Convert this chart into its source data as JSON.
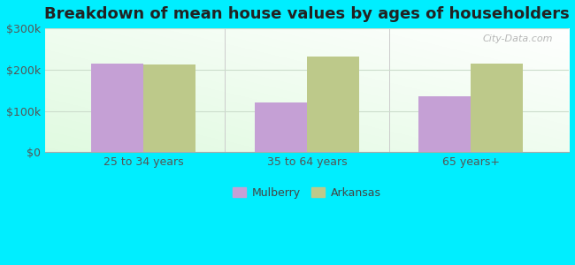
{
  "title": "Breakdown of mean house values by ages of householders",
  "categories": [
    "25 to 34 years",
    "35 to 64 years",
    "65 years+"
  ],
  "mulberry_values": [
    215000,
    120000,
    135000
  ],
  "arkansas_values": [
    212000,
    232000,
    215000
  ],
  "mulberry_color": "#c5a0d5",
  "arkansas_color": "#bdc98a",
  "ylim": [
    0,
    300000
  ],
  "yticks": [
    0,
    100000,
    200000,
    300000
  ],
  "ytick_labels": [
    "$0",
    "$100k",
    "$200k",
    "$300k"
  ],
  "background_color": "#00eeff",
  "legend_labels": [
    "Mulberry",
    "Arkansas"
  ],
  "bar_width": 0.32,
  "watermark": "City-Data.com",
  "title_fontsize": 13,
  "axis_fontsize": 9,
  "legend_fontsize": 9,
  "separator_color": "#cccccc"
}
